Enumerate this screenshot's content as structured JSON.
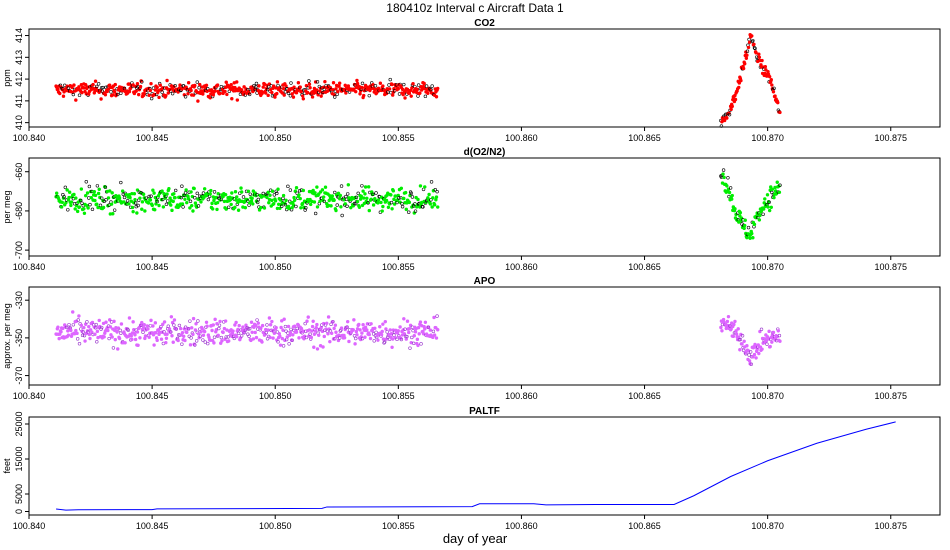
{
  "main_title": "180410z   Interval c Aircraft Data 1",
  "x_axis_title": "day of year",
  "chart_data": [
    {
      "type": "scatter",
      "title": "CO2",
      "ylabel": "ppm",
      "xlim": [
        100.84,
        100.877
      ],
      "ylim": [
        409.8,
        414.3
      ],
      "xticks": [
        "100.840",
        "100.845",
        "100.850",
        "100.855",
        "100.860",
        "100.865",
        "100.870",
        "100.875"
      ],
      "yticks": [
        "410",
        "411",
        "412",
        "413",
        "414"
      ],
      "point_color": "#ff0000",
      "outline_color": "#000000",
      "segments": [
        {
          "x_start": 100.8411,
          "x_end": 100.8566,
          "y_mean": 411.5,
          "y_spread": 0.35
        },
        {
          "x_start": 100.8681,
          "x_end": 100.8705,
          "profile": [
            [
              100.8681,
              410.0
            ],
            [
              100.8684,
              410.4
            ],
            [
              100.8687,
              411.3
            ],
            [
              100.869,
              412.5
            ],
            [
              100.8692,
              413.4
            ],
            [
              100.8693,
              414.1
            ],
            [
              100.8695,
              413.2
            ],
            [
              100.8698,
              412.5
            ],
            [
              100.8701,
              412.0
            ],
            [
              100.8703,
              411.2
            ],
            [
              100.8705,
              410.4
            ]
          ],
          "y_spread": 0.25
        }
      ]
    },
    {
      "type": "scatter",
      "title": "d(O2/N2)",
      "ylabel": "per meg",
      "xlim": [
        100.84,
        100.877
      ],
      "ylim": [
        -703,
        -653
      ],
      "xticks": [
        "100.840",
        "100.845",
        "100.850",
        "100.855",
        "100.860",
        "100.865",
        "100.870",
        "100.875"
      ],
      "yticks": [
        "-660",
        "-680",
        "-700"
      ],
      "point_color": "#00ee00",
      "outline_color": "#000000",
      "segments": [
        {
          "x_start": 100.8411,
          "x_end": 100.8566,
          "y_mean": -674,
          "y_spread": 6
        },
        {
          "x_start": 100.8681,
          "x_end": 100.8705,
          "profile": [
            [
              100.8681,
              -660
            ],
            [
              100.8684,
              -668
            ],
            [
              100.8687,
              -680
            ],
            [
              100.869,
              -688
            ],
            [
              100.8693,
              -692
            ],
            [
              100.8696,
              -682
            ],
            [
              100.8699,
              -676
            ],
            [
              100.8702,
              -672
            ],
            [
              100.8705,
              -668
            ]
          ],
          "y_spread": 5
        }
      ]
    },
    {
      "type": "scatter",
      "title": "APO",
      "ylabel": "approx. per meg",
      "xlim": [
        100.84,
        100.877
      ],
      "ylim": [
        -375,
        -323
      ],
      "xticks": [
        "100.840",
        "100.845",
        "100.850",
        "100.855",
        "100.860",
        "100.865",
        "100.870",
        "100.875"
      ],
      "yticks": [
        "-330",
        "-350",
        "-370"
      ],
      "point_color": "#dd66ff",
      "outline_color": "#9933cc",
      "segments": [
        {
          "x_start": 100.8411,
          "x_end": 100.8566,
          "y_mean": -347,
          "y_spread": 7
        },
        {
          "x_start": 100.8681,
          "x_end": 100.8705,
          "profile": [
            [
              100.8681,
              -340
            ],
            [
              100.8685,
              -345
            ],
            [
              100.869,
              -352
            ],
            [
              100.8693,
              -360
            ],
            [
              100.8697,
              -353
            ],
            [
              100.8701,
              -350
            ],
            [
              100.8705,
              -350
            ]
          ],
          "y_spread": 5
        }
      ]
    },
    {
      "type": "line",
      "title": "PALTF",
      "ylabel": "feet",
      "xlim": [
        100.84,
        100.877
      ],
      "ylim": [
        -1000,
        27000
      ],
      "xticks": [
        "100.840",
        "100.845",
        "100.850",
        "100.855",
        "100.860",
        "100.865",
        "100.870",
        "100.875"
      ],
      "yticks": [
        "0",
        "5000",
        "15000",
        "25000"
      ],
      "line_color": "#0000ff",
      "x": [
        100.8411,
        100.8415,
        100.842,
        100.845,
        100.8452,
        100.8519,
        100.8521,
        100.858,
        100.8583,
        100.8605,
        100.861,
        100.863,
        100.8662,
        100.867,
        100.8685,
        100.87,
        100.872,
        100.874,
        100.8752
      ],
      "y": [
        700,
        400,
        500,
        550,
        750,
        900,
        1300,
        1400,
        2200,
        2200,
        1900,
        2000,
        2000,
        4500,
        10000,
        14500,
        19500,
        23500,
        25600
      ]
    }
  ]
}
